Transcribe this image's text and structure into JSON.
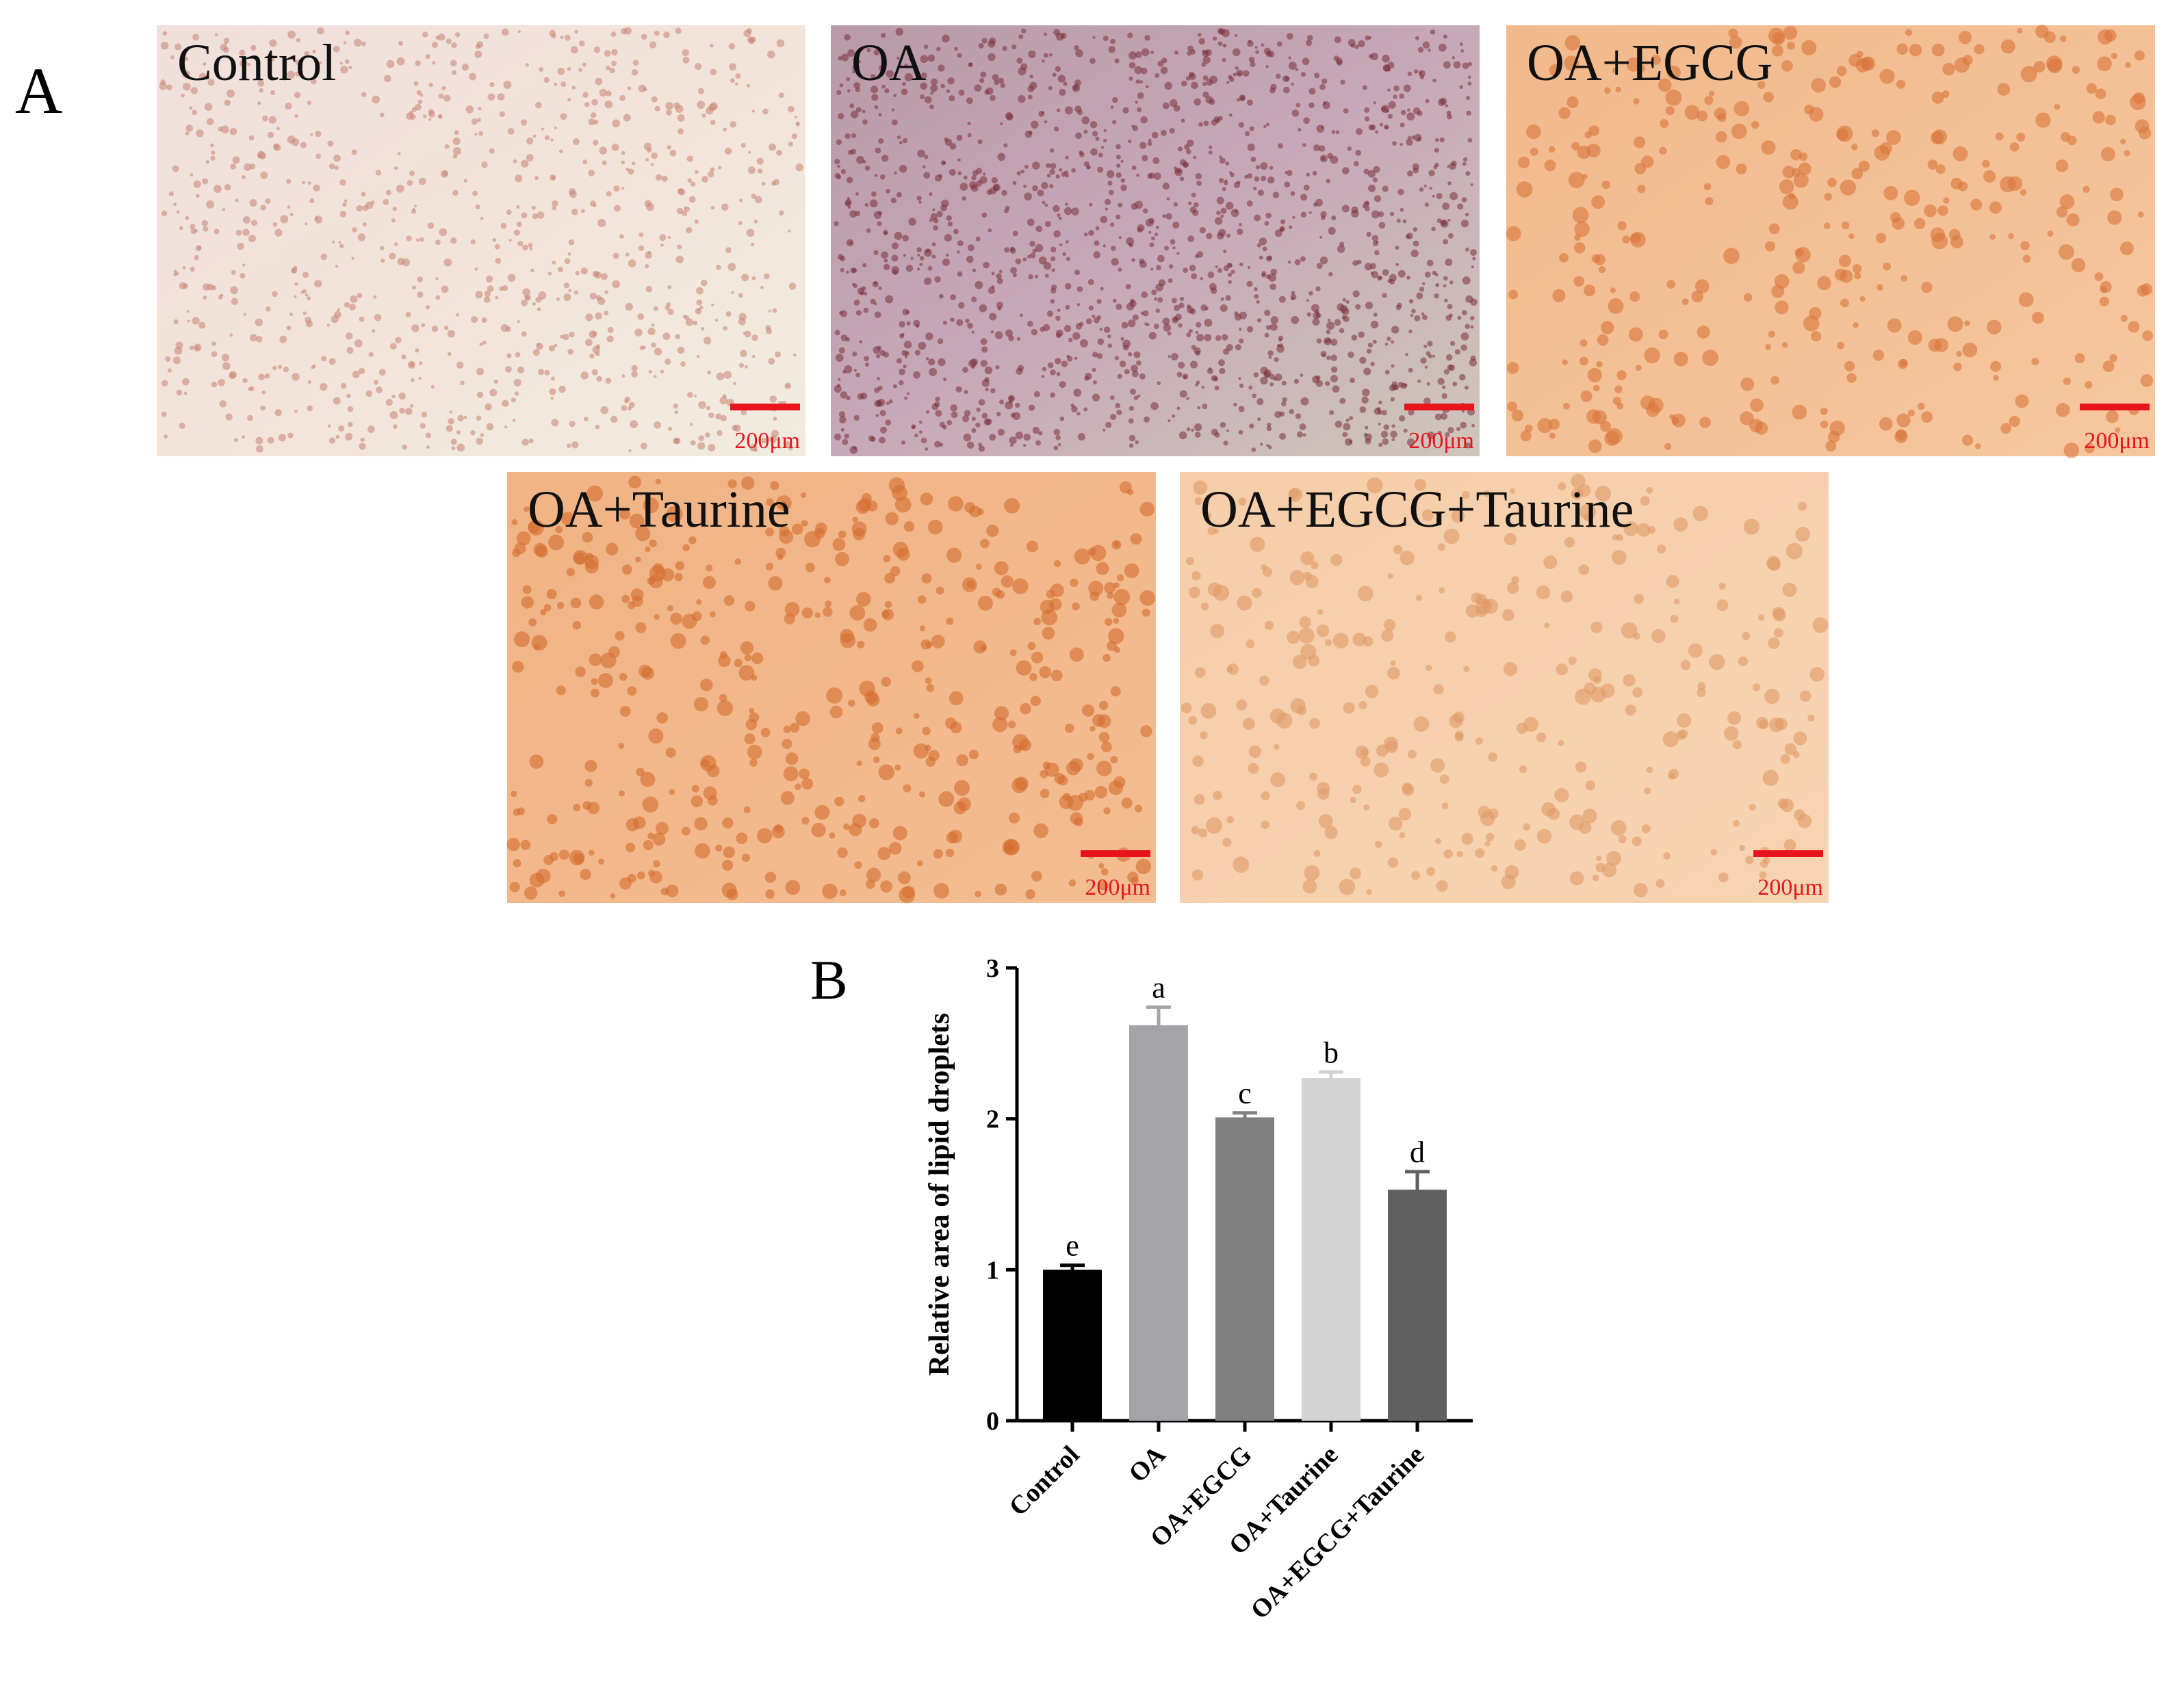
{
  "panel_labels": [
    "A",
    "B"
  ],
  "micrographs": [
    {
      "label": "Control",
      "scale_bar": "200μm"
    },
    {
      "label": "OA",
      "scale_bar": "200μm"
    },
    {
      "label": "OA+EGCG",
      "scale_bar": "200μm"
    },
    {
      "label": "OA+Taurine",
      "scale_bar": "200μm"
    },
    {
      "label": "OA+EGCG+Taurine",
      "scale_bar": "200μm"
    }
  ],
  "chart_data": {
    "type": "bar",
    "ylabel": "Relative area of  lipid droplets",
    "categories": [
      "Control",
      "OA",
      "OA+EGCG",
      "OA+Taurine",
      "OA+EGCG+Taurine"
    ],
    "values": [
      1.0,
      2.62,
      2.01,
      2.27,
      1.53
    ],
    "errors": [
      0.03,
      0.12,
      0.03,
      0.04,
      0.12
    ],
    "letters": [
      "e",
      "a",
      "c",
      "b",
      "d"
    ],
    "colors": [
      "#000000",
      "#a3a3a8",
      "#808080",
      "#d3d3d3",
      "#606060"
    ],
    "ylim": [
      0,
      3
    ],
    "yticks": [
      0,
      1,
      2,
      3
    ]
  }
}
